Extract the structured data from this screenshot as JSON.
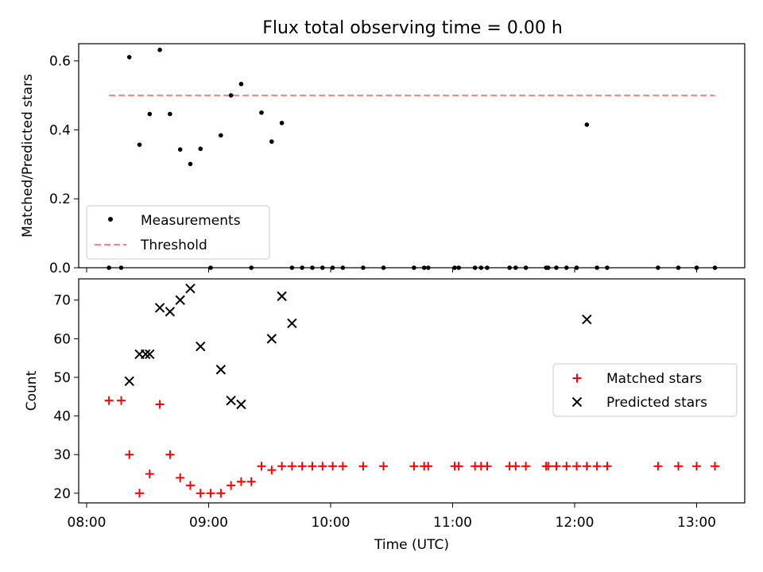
{
  "title": "Flux total observing time = 0.00 h",
  "colors": {
    "threshold": "#ff7f7f",
    "matched": "#ff0000",
    "predicted": "#000000",
    "measurement": "#000000"
  },
  "chart_data": [
    {
      "type": "scatter",
      "ylabel": "Matched/Predicted stars",
      "ylim": [
        0,
        0.65
      ],
      "yticks": [
        "0.0",
        "0.2",
        "0.4",
        "0.6"
      ],
      "ytick_values": [
        0,
        0.2,
        0.4,
        0.6
      ],
      "legend": {
        "placement": "lower-left",
        "entries": [
          "Measurements",
          "Threshold"
        ]
      },
      "threshold": {
        "name": "Threshold",
        "value": 0.5,
        "x_range": [
          "08:11",
          "13:09"
        ]
      },
      "series": [
        {
          "name": "Measurements",
          "x": [
            "08:11",
            "08:17",
            "08:21",
            "08:26",
            "08:31",
            "08:36",
            "08:41",
            "08:46",
            "08:51",
            "08:56",
            "09:01",
            "09:06",
            "09:11",
            "09:16",
            "09:21",
            "09:26",
            "09:31",
            "09:36",
            "09:41",
            "09:46",
            "09:51",
            "09:56",
            "10:01",
            "10:06",
            "10:16",
            "10:26",
            "10:41",
            "10:46",
            "10:48",
            "11:01",
            "11:03",
            "11:11",
            "11:14",
            "11:17",
            "11:28",
            "11:31",
            "11:36",
            "11:46",
            "11:47",
            "11:51",
            "11:56",
            "12:01",
            "12:06",
            "12:11",
            "12:16",
            "12:41",
            "12:51",
            "13:00",
            "13:09"
          ],
          "values": [
            0,
            0,
            0.611,
            0.357,
            0.446,
            0.632,
            0.446,
            0.343,
            0.301,
            0.345,
            0,
            0.384,
            0.5,
            0.533,
            0,
            0.45,
            0.366,
            0.42,
            0,
            0,
            0,
            0,
            0,
            0,
            0,
            0,
            0,
            0,
            0,
            0,
            0,
            0,
            0,
            0,
            0,
            0,
            0,
            0,
            0,
            0,
            0,
            0,
            0.415,
            0,
            0,
            0,
            0,
            0,
            0
          ]
        }
      ]
    },
    {
      "type": "scatter",
      "xlabel": "Time (UTC)",
      "ylabel": "Count",
      "ylim": [
        17.5,
        75.5
      ],
      "yticks": [
        "20",
        "30",
        "40",
        "50",
        "60",
        "70"
      ],
      "ytick_values": [
        20,
        30,
        40,
        50,
        60,
        70
      ],
      "xticks": [
        "08:00",
        "09:00",
        "10:00",
        "11:00",
        "12:00",
        "13:00"
      ],
      "legend": {
        "placement": "center-right",
        "entries": [
          "Matched stars",
          "Predicted stars"
        ]
      },
      "series": [
        {
          "name": "Matched stars",
          "x": [
            "08:11",
            "08:17",
            "08:21",
            "08:26",
            "08:31",
            "08:36",
            "08:41",
            "08:46",
            "08:51",
            "08:56",
            "09:01",
            "09:06",
            "09:11",
            "09:16",
            "09:21",
            "09:26",
            "09:31",
            "09:36",
            "09:41",
            "09:46",
            "09:51",
            "09:56",
            "10:01",
            "10:06",
            "10:16",
            "10:26",
            "10:41",
            "10:46",
            "10:48",
            "11:01",
            "11:03",
            "11:11",
            "11:14",
            "11:17",
            "11:28",
            "11:31",
            "11:36",
            "11:46",
            "11:47",
            "11:51",
            "11:56",
            "12:01",
            "12:06",
            "12:11",
            "12:16",
            "12:41",
            "12:51",
            "13:00",
            "13:09"
          ],
          "values": [
            44,
            44,
            30,
            20,
            25,
            43,
            30,
            24,
            22,
            20,
            20,
            20,
            22,
            23,
            23,
            27,
            26,
            27,
            27,
            27,
            27,
            27,
            27,
            27,
            27,
            27,
            27,
            27,
            27,
            27,
            27,
            27,
            27,
            27,
            27,
            27,
            27,
            27,
            27,
            27,
            27,
            27,
            27,
            27,
            27,
            27,
            27,
            27,
            27
          ]
        },
        {
          "name": "Predicted stars",
          "x": [
            "08:21",
            "08:26",
            "08:29",
            "08:31",
            "08:36",
            "08:41",
            "08:46",
            "08:51",
            "08:56",
            "09:06",
            "09:11",
            "09:16",
            "09:31",
            "09:36",
            "09:41",
            "12:06"
          ],
          "values": [
            49,
            56,
            56,
            56,
            68,
            67,
            70,
            73,
            58,
            52,
            44,
            43,
            60,
            71,
            64,
            65
          ]
        }
      ]
    }
  ]
}
